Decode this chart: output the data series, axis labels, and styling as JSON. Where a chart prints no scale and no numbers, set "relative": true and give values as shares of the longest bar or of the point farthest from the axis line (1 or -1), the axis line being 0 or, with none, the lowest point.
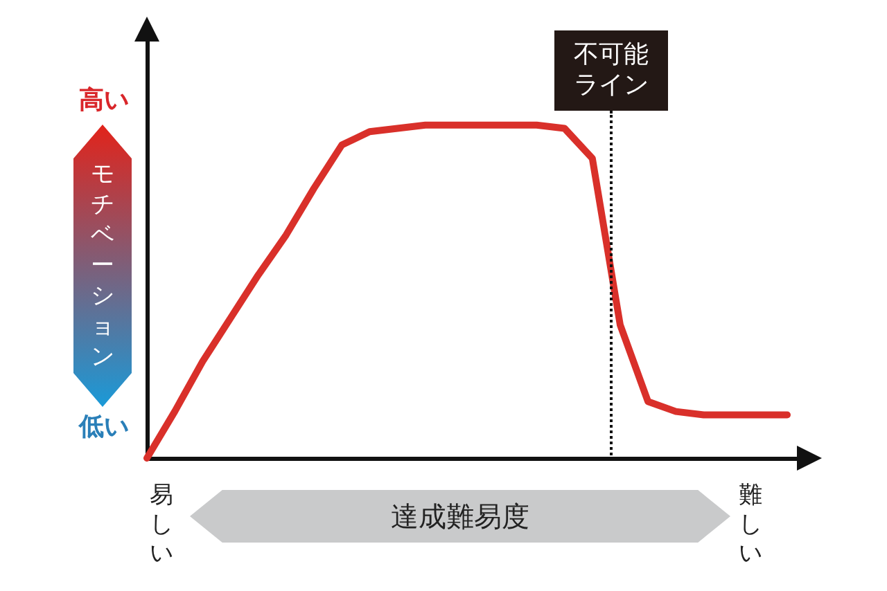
{
  "chart_data": {
    "type": "line",
    "relative": true,
    "xlabel": "達成難易度",
    "ylabel": "モチベーション",
    "annotations": [
      "高い",
      "低い",
      "易しい",
      "難しい",
      "不可能ライン"
    ],
    "categories": [
      null,
      null,
      null,
      null,
      null,
      null,
      null,
      null,
      null,
      null,
      null,
      null,
      null,
      null,
      null,
      null,
      null,
      null,
      null,
      null,
      null,
      null,
      null,
      null
    ],
    "series": [
      {
        "color": "#d9302a",
        "values": [
          0,
          0.14,
          0.29,
          0.42,
          0.55,
          0.67,
          0.81,
          0.94,
          0.98,
          0.99,
          1,
          1,
          1,
          1,
          1,
          0.99,
          0.9,
          0.4,
          0.17,
          0.14,
          0.13,
          0.13,
          0.13,
          0.13
        ]
      }
    ],
    "grid": false,
    "marker": "none",
    "line_style": "solid"
  }
}
